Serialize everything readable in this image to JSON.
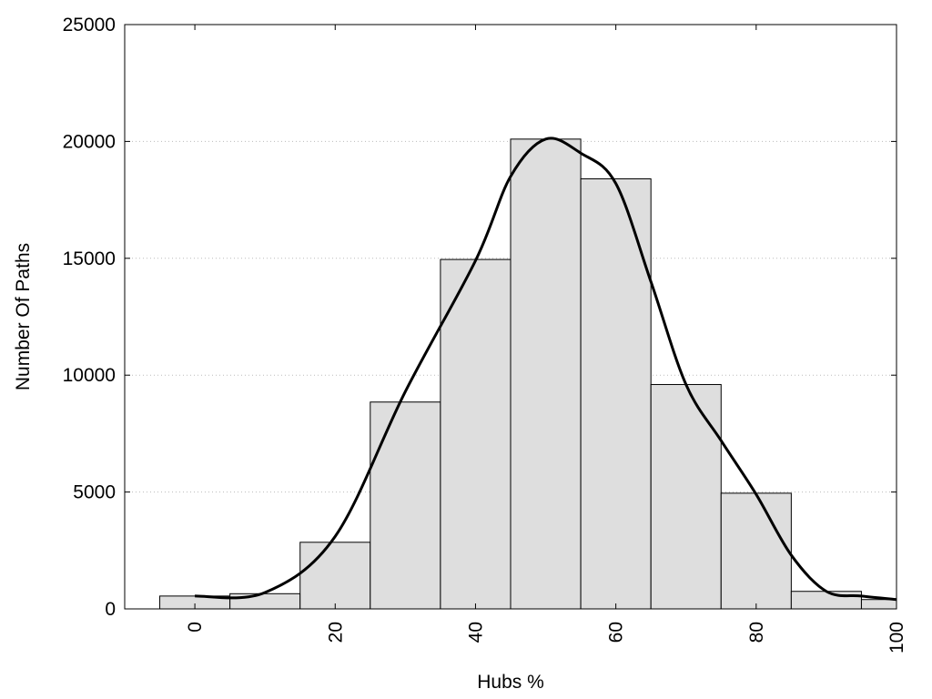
{
  "chart_data": {
    "type": "bar",
    "xlabel": "Hubs %",
    "ylabel": "Number Of Paths",
    "xlim": [
      -10,
      100
    ],
    "ylim": [
      0,
      25000
    ],
    "x_ticks": [
      0,
      20,
      40,
      60,
      80,
      100
    ],
    "y_ticks": [
      0,
      5000,
      10000,
      15000,
      20000,
      25000
    ],
    "grid": "horizontal dotted",
    "bin_width": 10,
    "bins": [
      {
        "center": 0,
        "value": 550
      },
      {
        "center": 10,
        "value": 650
      },
      {
        "center": 20,
        "value": 2850
      },
      {
        "center": 30,
        "value": 8850
      },
      {
        "center": 40,
        "value": 14950
      },
      {
        "center": 50,
        "value": 20100
      },
      {
        "center": 60,
        "value": 18400
      },
      {
        "center": 70,
        "value": 9600
      },
      {
        "center": 80,
        "value": 4950
      },
      {
        "center": 90,
        "value": 750
      },
      {
        "center": 100,
        "value": 400
      }
    ],
    "density_curve": [
      [
        0,
        550
      ],
      [
        10,
        700
      ],
      [
        20,
        3100
      ],
      [
        30,
        9300
      ],
      [
        40,
        14900
      ],
      [
        45,
        18500
      ],
      [
        50,
        20100
      ],
      [
        55,
        19500
      ],
      [
        60,
        18200
      ],
      [
        65,
        14000
      ],
      [
        70,
        9600
      ],
      [
        75,
        7200
      ],
      [
        80,
        4900
      ],
      [
        85,
        2300
      ],
      [
        90,
        750
      ],
      [
        95,
        550
      ],
      [
        100,
        400
      ]
    ],
    "colors": {
      "bar_fill": "#dedede",
      "bar_stroke": "#000000",
      "curve": "#000000",
      "grid": "#bbbbbb"
    }
  }
}
